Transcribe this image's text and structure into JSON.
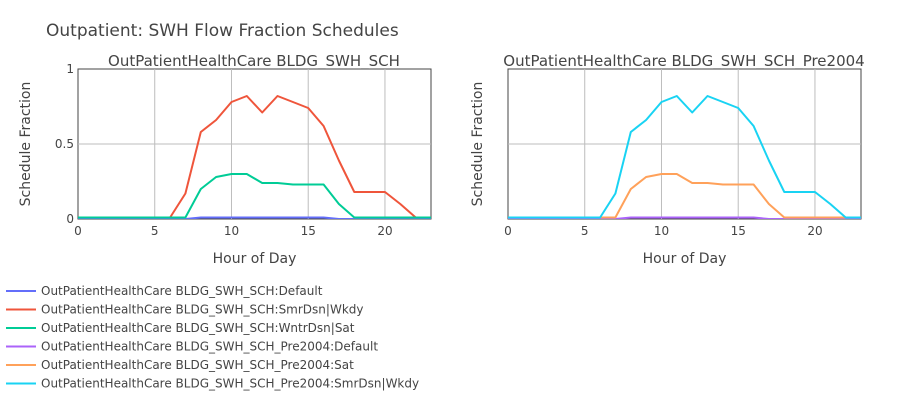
{
  "figure": {
    "title": "Outpatient: SWH Flow Fraction Schedules"
  },
  "chart_data": [
    {
      "type": "line",
      "title": "OutPatientHealthCare BLDG_SWH_SCH",
      "xlabel": "Hour of Day",
      "ylabel": "Schedule Fraction",
      "xlim": [
        0,
        23
      ],
      "ylim": [
        0,
        1
      ],
      "x_ticks": [
        0,
        5,
        10,
        15,
        20
      ],
      "y_ticks": [
        0,
        0.5,
        1
      ],
      "y_tick_labels": [
        "0",
        "0.5",
        "1"
      ],
      "grid": true,
      "x": [
        0,
        1,
        2,
        3,
        4,
        5,
        6,
        7,
        8,
        9,
        10,
        11,
        12,
        13,
        14,
        15,
        16,
        17,
        18,
        19,
        20,
        21,
        22,
        23
      ],
      "series": [
        {
          "name": "OutPatientHealthCare BLDG_SWH_SCH:Default",
          "color": "#636efa",
          "values": [
            0,
            0,
            0,
            0,
            0,
            0,
            0,
            0,
            0.01,
            0.01,
            0.01,
            0.01,
            0.01,
            0.01,
            0.01,
            0.01,
            0.01,
            0,
            0,
            0,
            0,
            0,
            0,
            0
          ]
        },
        {
          "name": "OutPatientHealthCare BLDG_SWH_SCH:SmrDsn|Wkdy",
          "color": "#ef553b",
          "values": [
            0.01,
            0.01,
            0.01,
            0.01,
            0.01,
            0.01,
            0.01,
            0.17,
            0.58,
            0.66,
            0.78,
            0.82,
            0.71,
            0.82,
            0.78,
            0.74,
            0.62,
            0.39,
            0.18,
            0.18,
            0.18,
            0.1,
            0.01,
            0.01
          ]
        },
        {
          "name": "OutPatientHealthCare BLDG_SWH_SCH:WntrDsn|Sat",
          "color": "#00cc96",
          "values": [
            0.01,
            0.01,
            0.01,
            0.01,
            0.01,
            0.01,
            0.01,
            0.01,
            0.2,
            0.28,
            0.3,
            0.3,
            0.24,
            0.24,
            0.23,
            0.23,
            0.23,
            0.1,
            0.01,
            0.01,
            0.01,
            0.01,
            0.01,
            0.01
          ]
        }
      ]
    },
    {
      "type": "line",
      "title": "OutPatientHealthCare BLDG_SWH_SCH_Pre2004",
      "xlabel": "Hour of Day",
      "ylabel": "Schedule Fraction",
      "xlim": [
        0,
        23
      ],
      "ylim": [
        0,
        1
      ],
      "x_ticks": [
        0,
        5,
        10,
        15,
        20
      ],
      "y_ticks": [
        0,
        0.5,
        1
      ],
      "grid": true,
      "x": [
        0,
        1,
        2,
        3,
        4,
        5,
        6,
        7,
        8,
        9,
        10,
        11,
        12,
        13,
        14,
        15,
        16,
        17,
        18,
        19,
        20,
        21,
        22,
        23
      ],
      "series": [
        {
          "name": "OutPatientHealthCare BLDG_SWH_SCH_Pre2004:Default",
          "color": "#ab63fa",
          "values": [
            0,
            0,
            0,
            0,
            0,
            0,
            0,
            0,
            0.01,
            0.01,
            0.01,
            0.01,
            0.01,
            0.01,
            0.01,
            0.01,
            0.01,
            0,
            0,
            0,
            0,
            0,
            0,
            0
          ]
        },
        {
          "name": "OutPatientHealthCare BLDG_SWH_SCH_Pre2004:Sat",
          "color": "#ffa15a",
          "values": [
            0.01,
            0.01,
            0.01,
            0.01,
            0.01,
            0.01,
            0.01,
            0.01,
            0.2,
            0.28,
            0.3,
            0.3,
            0.24,
            0.24,
            0.23,
            0.23,
            0.23,
            0.1,
            0.01,
            0.01,
            0.01,
            0.01,
            0.01,
            0.01
          ]
        },
        {
          "name": "OutPatientHealthCare BLDG_SWH_SCH_Pre2004:SmrDsn|Wkdy",
          "color": "#19d3f3",
          "values": [
            0.01,
            0.01,
            0.01,
            0.01,
            0.01,
            0.01,
            0.01,
            0.17,
            0.58,
            0.66,
            0.78,
            0.82,
            0.71,
            0.82,
            0.78,
            0.74,
            0.62,
            0.39,
            0.18,
            0.18,
            0.18,
            0.1,
            0.01,
            0.01
          ]
        }
      ]
    }
  ]
}
